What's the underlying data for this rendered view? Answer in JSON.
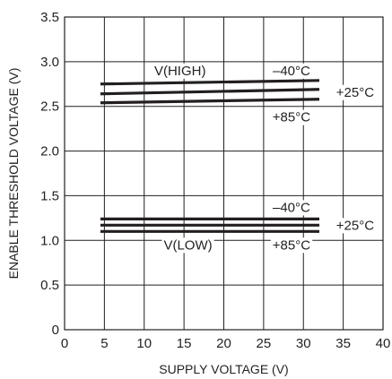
{
  "chart_data": {
    "type": "line",
    "xlabel": "SUPPLY VOLTAGE (V)",
    "ylabel": "ENABLE THRESHOLD VOLTAGE (V)",
    "xlim": [
      0,
      40
    ],
    "ylim": [
      0,
      3.5
    ],
    "xticks": [
      "0",
      "5",
      "10",
      "15",
      "20",
      "25",
      "30",
      "35",
      "40"
    ],
    "yticks": [
      "0",
      "0.5",
      "1.0",
      "1.5",
      "2.0",
      "2.5",
      "3.0",
      "3.5"
    ],
    "grid": true,
    "series": [
      {
        "name": "–40°C",
        "x": [
          4.5,
          32
        ],
        "y": [
          2.75,
          2.79
        ]
      },
      {
        "name": "+25°C",
        "x": [
          4.5,
          32
        ],
        "y": [
          2.64,
          2.69
        ]
      },
      {
        "name": "+85°C",
        "x": [
          4.5,
          32
        ],
        "y": [
          2.54,
          2.58
        ]
      },
      {
        "name": "–40°C",
        "x": [
          4.5,
          32
        ],
        "y": [
          1.24,
          1.24
        ]
      },
      {
        "name": "+25°C",
        "x": [
          4.5,
          32
        ],
        "y": [
          1.17,
          1.17
        ]
      },
      {
        "name": "+85°C",
        "x": [
          4.5,
          32
        ],
        "y": [
          1.1,
          1.1
        ]
      }
    ],
    "annotations": [
      {
        "text": "V(HIGH)",
        "x": 14.5,
        "y": 2.9
      },
      {
        "text": "–40°C",
        "x": 28.5,
        "y": 2.9
      },
      {
        "text": "+25°C",
        "x": 36.5,
        "y": 2.66
      },
      {
        "text": "+85°C",
        "x": 28.5,
        "y": 2.38
      },
      {
        "text": "V(LOW)",
        "x": 15.5,
        "y": 0.95
      },
      {
        "text": "–40°C",
        "x": 28.5,
        "y": 1.37
      },
      {
        "text": "+25°C",
        "x": 36.5,
        "y": 1.17
      },
      {
        "text": "+85°C",
        "x": 28.5,
        "y": 0.95
      }
    ]
  }
}
